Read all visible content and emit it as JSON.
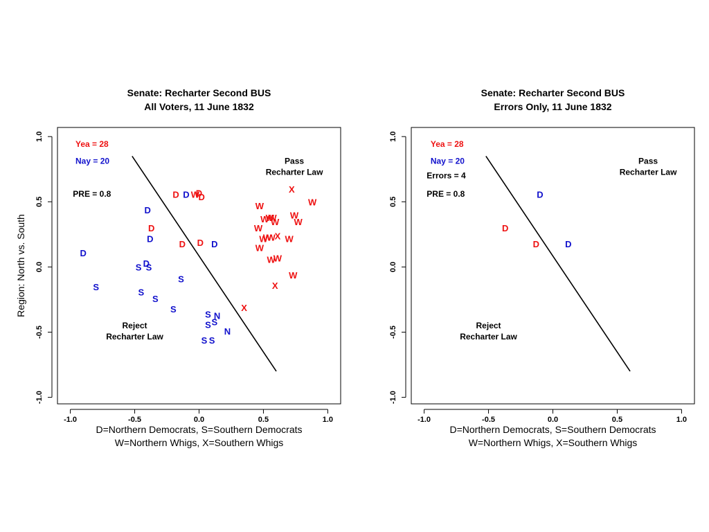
{
  "colors": {
    "yea": "#ee1111",
    "nay": "#1111cc",
    "text": "#000000"
  },
  "chart_data": [
    {
      "type": "scatter",
      "title": "Senate: Recharter Second BUS",
      "subtitle": "All Voters, 11 June 1832",
      "xlabel": [
        "D=Northern Democrats, S=Southern Democrats",
        "W=Northern Whigs, X=Southern Whigs"
      ],
      "ylabel": "Region: North vs. South",
      "xlim": [
        -1.1,
        1.1
      ],
      "ylim": [
        -1.05,
        1.07
      ],
      "xticks": [
        -1.0,
        -0.5,
        0.0,
        0.5,
        1.0
      ],
      "yticks": [
        -1.0,
        -0.5,
        0.0,
        0.5,
        1.0
      ],
      "xtick_labels": [
        "-1.0",
        "-0.5",
        "0.0",
        "0.5",
        "1.0"
      ],
      "ytick_labels": [
        "-1.0",
        "-0.5",
        "0.0",
        "0.5",
        "1.0"
      ],
      "stats": [
        {
          "label": "Yea =  28",
          "color": "yea",
          "x": -0.96,
          "y": 0.92
        },
        {
          "label": "Nay =  20",
          "color": "nay",
          "x": -0.96,
          "y": 0.79
        },
        {
          "label": "PRE =  0.8",
          "color": "text",
          "x": -0.98,
          "y": 0.54
        }
      ],
      "annotations": [
        {
          "lines": [
            "Pass",
            "Recharter Law"
          ],
          "x": 0.74,
          "y": 0.79
        },
        {
          "lines": [
            "Reject",
            "Recharter Law"
          ],
          "x": -0.5,
          "y": -0.47
        }
      ],
      "cutline": {
        "x": [
          -0.52,
          0.6
        ],
        "y": [
          0.85,
          -0.8
        ]
      },
      "points": [
        {
          "label": "D",
          "vote": "yea",
          "x": -0.18,
          "y": 0.55
        },
        {
          "label": "W",
          "vote": "yea",
          "x": -0.03,
          "y": 0.55
        },
        {
          "label": "D",
          "vote": "yea",
          "x": 0.0,
          "y": 0.56
        },
        {
          "label": "D",
          "vote": "yea",
          "x": 0.02,
          "y": 0.53
        },
        {
          "label": "D",
          "vote": "yea",
          "x": -0.37,
          "y": 0.29
        },
        {
          "label": "D",
          "vote": "yea",
          "x": -0.13,
          "y": 0.17
        },
        {
          "label": "D",
          "vote": "yea",
          "x": 0.01,
          "y": 0.18
        },
        {
          "label": "X",
          "vote": "yea",
          "x": 0.72,
          "y": 0.59
        },
        {
          "label": "W",
          "vote": "yea",
          "x": 0.88,
          "y": 0.49
        },
        {
          "label": "W",
          "vote": "yea",
          "x": 0.47,
          "y": 0.46
        },
        {
          "label": "W",
          "vote": "yea",
          "x": 0.51,
          "y": 0.36
        },
        {
          "label": "W",
          "vote": "yea",
          "x": 0.55,
          "y": 0.37
        },
        {
          "label": "W",
          "vote": "yea",
          "x": 0.57,
          "y": 0.37
        },
        {
          "label": "W",
          "vote": "yea",
          "x": 0.59,
          "y": 0.34
        },
        {
          "label": "W",
          "vote": "yea",
          "x": 0.74,
          "y": 0.39
        },
        {
          "label": "W",
          "vote": "yea",
          "x": 0.77,
          "y": 0.34
        },
        {
          "label": "W",
          "vote": "yea",
          "x": 0.46,
          "y": 0.29
        },
        {
          "label": "W",
          "vote": "yea",
          "x": 0.5,
          "y": 0.21
        },
        {
          "label": "W",
          "vote": "yea",
          "x": 0.53,
          "y": 0.22
        },
        {
          "label": "W",
          "vote": "yea",
          "x": 0.56,
          "y": 0.22
        },
        {
          "label": "X",
          "vote": "yea",
          "x": 0.61,
          "y": 0.23
        },
        {
          "label": "W",
          "vote": "yea",
          "x": 0.7,
          "y": 0.21
        },
        {
          "label": "W",
          "vote": "yea",
          "x": 0.47,
          "y": 0.14
        },
        {
          "label": "W",
          "vote": "yea",
          "x": 0.56,
          "y": 0.05
        },
        {
          "label": "W",
          "vote": "yea",
          "x": 0.61,
          "y": 0.06
        },
        {
          "label": "W",
          "vote": "yea",
          "x": 0.73,
          "y": -0.07
        },
        {
          "label": "X",
          "vote": "yea",
          "x": 0.59,
          "y": -0.15
        },
        {
          "label": "X",
          "vote": "yea",
          "x": 0.35,
          "y": -0.32
        },
        {
          "label": "D",
          "vote": "nay",
          "x": -0.1,
          "y": 0.55
        },
        {
          "label": "D",
          "vote": "nay",
          "x": -0.4,
          "y": 0.43
        },
        {
          "label": "D",
          "vote": "nay",
          "x": -0.38,
          "y": 0.21
        },
        {
          "label": "D",
          "vote": "nay",
          "x": 0.12,
          "y": 0.17
        },
        {
          "label": "D",
          "vote": "nay",
          "x": -0.9,
          "y": 0.1
        },
        {
          "label": "S",
          "vote": "nay",
          "x": -0.47,
          "y": -0.01
        },
        {
          "label": "D",
          "vote": "nay",
          "x": -0.41,
          "y": 0.02
        },
        {
          "label": "S",
          "vote": "nay",
          "x": -0.39,
          "y": -0.01
        },
        {
          "label": "S",
          "vote": "nay",
          "x": -0.8,
          "y": -0.16
        },
        {
          "label": "S",
          "vote": "nay",
          "x": -0.45,
          "y": -0.2
        },
        {
          "label": "S",
          "vote": "nay",
          "x": -0.34,
          "y": -0.25
        },
        {
          "label": "S",
          "vote": "nay",
          "x": -0.14,
          "y": -0.1
        },
        {
          "label": "S",
          "vote": "nay",
          "x": -0.2,
          "y": -0.33
        },
        {
          "label": "S",
          "vote": "nay",
          "x": 0.07,
          "y": -0.37
        },
        {
          "label": "N",
          "vote": "nay",
          "x": 0.14,
          "y": -0.38
        },
        {
          "label": "S",
          "vote": "nay",
          "x": 0.12,
          "y": -0.43
        },
        {
          "label": "S",
          "vote": "nay",
          "x": 0.07,
          "y": -0.45
        },
        {
          "label": "N",
          "vote": "nay",
          "x": 0.22,
          "y": -0.5
        },
        {
          "label": "S",
          "vote": "nay",
          "x": 0.04,
          "y": -0.57
        },
        {
          "label": "S",
          "vote": "nay",
          "x": 0.1,
          "y": -0.57
        }
      ]
    },
    {
      "type": "scatter",
      "title": "Senate: Recharter Second BUS",
      "subtitle": "Errors Only, 11 June 1832",
      "xlabel": [
        "D=Northern Democrats, S=Southern Democrats",
        "W=Northern Whigs, X=Southern Whigs"
      ],
      "ylabel": "",
      "xlim": [
        -1.1,
        1.1
      ],
      "ylim": [
        -1.05,
        1.07
      ],
      "xticks": [
        -1.0,
        -0.5,
        0.0,
        0.5,
        1.0
      ],
      "yticks": [
        -1.0,
        -0.5,
        0.0,
        0.5,
        1.0
      ],
      "xtick_labels": [
        "-1.0",
        "-0.5",
        "0.0",
        "0.5",
        "1.0"
      ],
      "ytick_labels": [
        "-1.0",
        "-0.5",
        "0.0",
        "0.5",
        "1.0"
      ],
      "stats": [
        {
          "label": "Yea =  28",
          "color": "yea",
          "x": -0.95,
          "y": 0.92
        },
        {
          "label": "Nay =  20",
          "color": "nay",
          "x": -0.95,
          "y": 0.79
        },
        {
          "label": "Errors =  4",
          "color": "text",
          "x": -0.98,
          "y": 0.68
        },
        {
          "label": "PRE =  0.8",
          "color": "text",
          "x": -0.98,
          "y": 0.54
        }
      ],
      "annotations": [
        {
          "lines": [
            "Pass",
            "Recharter Law"
          ],
          "x": 0.74,
          "y": 0.79
        },
        {
          "lines": [
            "Reject",
            "Recharter Law"
          ],
          "x": -0.5,
          "y": -0.47
        }
      ],
      "cutline": {
        "x": [
          -0.52,
          0.6
        ],
        "y": [
          0.85,
          -0.8
        ]
      },
      "points": [
        {
          "label": "D",
          "vote": "nay",
          "x": -0.1,
          "y": 0.55
        },
        {
          "label": "D",
          "vote": "yea",
          "x": -0.37,
          "y": 0.29
        },
        {
          "label": "D",
          "vote": "yea",
          "x": -0.13,
          "y": 0.17
        },
        {
          "label": "D",
          "vote": "nay",
          "x": 0.12,
          "y": 0.17
        }
      ]
    }
  ]
}
